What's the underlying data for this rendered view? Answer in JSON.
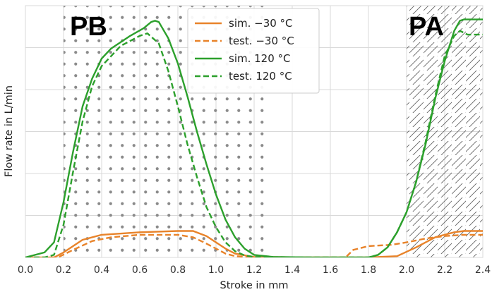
{
  "chart_data": {
    "type": "line",
    "title": "",
    "xlabel": "Stroke in mm",
    "ylabel": "Flow rate in L/min",
    "xlim": [
      0.0,
      2.4
    ],
    "ylim": [
      0,
      1.0
    ],
    "xticks": [
      "0.0",
      "0.2",
      "0.4",
      "0.6",
      "0.8",
      "1.0",
      "1.2",
      "1.4",
      "1.6",
      "1.8",
      "2.0",
      "2.2",
      "2.4"
    ],
    "yticks_labeled": false,
    "grid": true,
    "legend_position": "top-center",
    "regions": [
      {
        "label": "PB",
        "x_range": [
          0.2,
          1.25
        ],
        "pattern": "dots"
      },
      {
        "label": "PA",
        "x_range": [
          2.0,
          2.4
        ],
        "pattern": "hatch"
      }
    ],
    "colors": {
      "cold": "#e8832a",
      "hot": "#2ca02c"
    },
    "series": [
      {
        "name": "sim. −30 °C",
        "color": "#e8832a",
        "style": "solid",
        "x": [
          0.0,
          0.1,
          0.15,
          0.2,
          0.3,
          0.4,
          0.6,
          0.8,
          0.88,
          0.95,
          1.0,
          1.05,
          1.1,
          1.2,
          1.5,
          1.8,
          1.95,
          2.05,
          2.15,
          2.25,
          2.3,
          2.4
        ],
        "y": [
          0.0,
          0.0,
          0.0,
          0.02,
          0.07,
          0.09,
          0.1,
          0.105,
          0.105,
          0.085,
          0.06,
          0.035,
          0.015,
          0.002,
          0.0,
          0.0,
          0.005,
          0.04,
          0.08,
          0.1,
          0.105,
          0.105
        ]
      },
      {
        "name": "test. −30 °C",
        "color": "#e8832a",
        "style": "dashed",
        "x": [
          0.0,
          0.1,
          0.17,
          0.25,
          0.35,
          0.45,
          0.6,
          0.8,
          0.88,
          0.95,
          1.0,
          1.05,
          1.1,
          1.2,
          1.5,
          1.68,
          1.72,
          1.8,
          1.92,
          2.0,
          2.1,
          2.2,
          2.3,
          2.4
        ],
        "y": [
          0.0,
          0.0,
          0.0,
          0.03,
          0.065,
          0.08,
          0.09,
          0.09,
          0.08,
          0.055,
          0.035,
          0.015,
          0.005,
          0.0,
          0.0,
          0.0,
          0.03,
          0.045,
          0.05,
          0.06,
          0.075,
          0.085,
          0.09,
          0.09
        ]
      },
      {
        "name": "sim. 120 °C",
        "color": "#2ca02c",
        "style": "solid",
        "x": [
          0.0,
          0.1,
          0.15,
          0.2,
          0.25,
          0.3,
          0.35,
          0.4,
          0.45,
          0.55,
          0.62,
          0.66,
          0.68,
          0.7,
          0.75,
          0.8,
          0.85,
          0.9,
          0.95,
          1.0,
          1.05,
          1.1,
          1.15,
          1.2,
          1.3,
          1.5,
          1.8,
          1.85,
          1.9,
          1.95,
          2.0,
          2.05,
          2.1,
          2.15,
          2.2,
          2.25,
          2.28,
          2.3,
          2.35,
          2.4
        ],
        "y": [
          0.0,
          0.02,
          0.06,
          0.22,
          0.42,
          0.6,
          0.71,
          0.79,
          0.83,
          0.88,
          0.91,
          0.935,
          0.94,
          0.935,
          0.87,
          0.77,
          0.64,
          0.5,
          0.37,
          0.25,
          0.15,
          0.08,
          0.035,
          0.01,
          0.002,
          0.0,
          0.0,
          0.01,
          0.04,
          0.1,
          0.18,
          0.3,
          0.45,
          0.63,
          0.78,
          0.9,
          0.94,
          0.945,
          0.945,
          0.945
        ]
      },
      {
        "name": "test. 120 °C",
        "color": "#2ca02c",
        "style": "dashed",
        "x": [
          0.0,
          0.1,
          0.15,
          0.2,
          0.25,
          0.3,
          0.35,
          0.4,
          0.5,
          0.6,
          0.64,
          0.7,
          0.75,
          0.8,
          0.85,
          0.9,
          0.95,
          1.0,
          1.05,
          1.1,
          1.15,
          1.2,
          1.5,
          1.8,
          1.85,
          1.9,
          1.95,
          2.0,
          2.05,
          2.1,
          2.15,
          2.2,
          2.25,
          2.28,
          2.32,
          2.4
        ],
        "y": [
          0.0,
          0.0,
          0.01,
          0.13,
          0.34,
          0.54,
          0.68,
          0.76,
          0.84,
          0.88,
          0.89,
          0.85,
          0.74,
          0.6,
          0.45,
          0.32,
          0.2,
          0.12,
          0.06,
          0.025,
          0.008,
          0.002,
          0.0,
          0.0,
          0.01,
          0.04,
          0.1,
          0.18,
          0.3,
          0.46,
          0.64,
          0.8,
          0.88,
          0.9,
          0.885,
          0.885
        ]
      }
    ]
  }
}
